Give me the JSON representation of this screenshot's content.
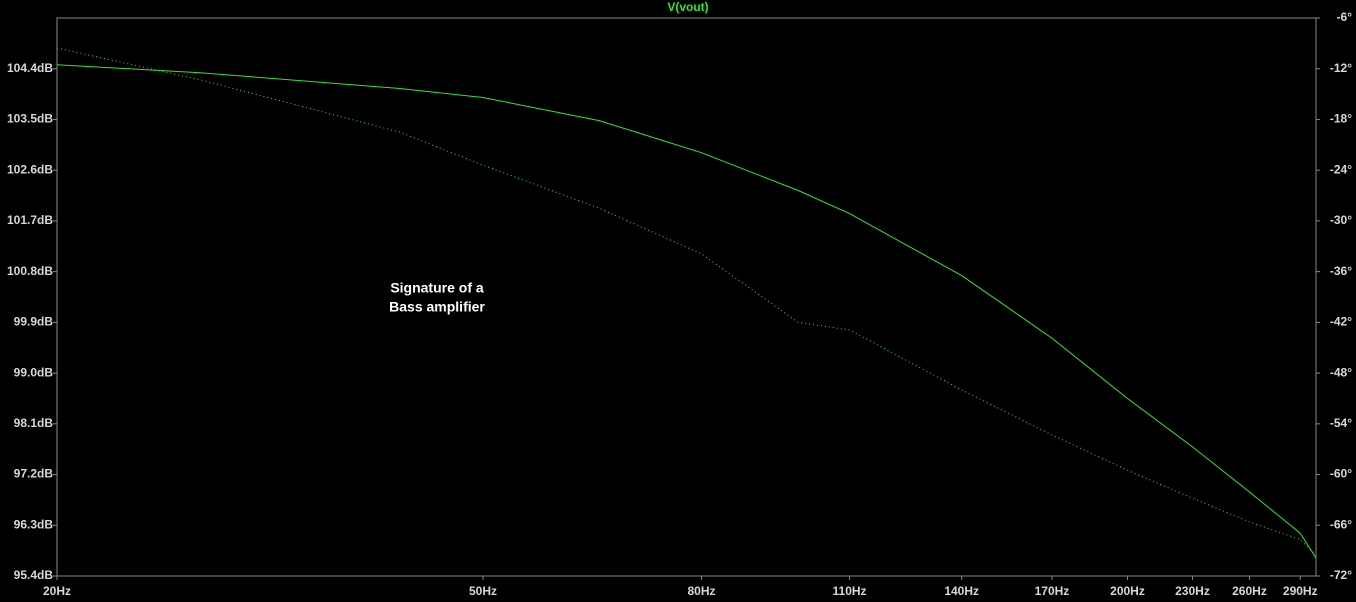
{
  "chart_data": {
    "type": "line",
    "title": "V(vout)",
    "title_color": "#2ee82e",
    "annotation": [
      "Signature of a",
      "Bass amplifier"
    ],
    "x": [
      20,
      27.2,
      41.8,
      50,
      64.2,
      80,
      98.5,
      110,
      140,
      170,
      200,
      230,
      260,
      290,
      300
    ],
    "xscale": "log",
    "xlim": [
      20,
      300
    ],
    "xticks": [
      {
        "value": 20,
        "label": "20Hz"
      },
      {
        "value": 50,
        "label": "50Hz"
      },
      {
        "value": 80,
        "label": "80Hz"
      },
      {
        "value": 110,
        "label": "110Hz"
      },
      {
        "value": 140,
        "label": "140Hz"
      },
      {
        "value": 170,
        "label": "170Hz"
      },
      {
        "value": 200,
        "label": "200Hz"
      },
      {
        "value": 230,
        "label": "230Hz"
      },
      {
        "value": 260,
        "label": "260Hz"
      },
      {
        "value": 290,
        "label": "290Hz"
      }
    ],
    "ylim": [
      95.4,
      105.3
    ],
    "yticks": [
      {
        "value": 95.4,
        "label": "95.4dB"
      },
      {
        "value": 96.3,
        "label": "96.3dB"
      },
      {
        "value": 97.2,
        "label": "97.2dB"
      },
      {
        "value": 98.1,
        "label": "98.1dB"
      },
      {
        "value": 99.0,
        "label": "99.0dB"
      },
      {
        "value": 99.9,
        "label": "99.9dB"
      },
      {
        "value": 100.8,
        "label": "100.8dB"
      },
      {
        "value": 101.7,
        "label": "101.7dB"
      },
      {
        "value": 102.6,
        "label": "102.6dB"
      },
      {
        "value": 103.5,
        "label": "103.5dB"
      },
      {
        "value": 104.4,
        "label": "104.4dB"
      }
    ],
    "y2lim": [
      -72,
      -6
    ],
    "y2ticks": [
      {
        "value": -72,
        "label": "-72°"
      },
      {
        "value": -66,
        "label": "-66°"
      },
      {
        "value": -60,
        "label": "-60°"
      },
      {
        "value": -54,
        "label": "-54°"
      },
      {
        "value": -48,
        "label": "-48°"
      },
      {
        "value": -42,
        "label": "-42°"
      },
      {
        "value": -36,
        "label": "-36°"
      },
      {
        "value": -30,
        "label": "-30°"
      },
      {
        "value": -24,
        "label": "-24°"
      },
      {
        "value": -18,
        "label": "-18°"
      },
      {
        "value": -12,
        "label": "-12°"
      },
      {
        "value": -6,
        "label": "-6°"
      }
    ],
    "series": [
      {
        "color": "#2ee82e",
        "style": "solid",
        "values": [
          104.47,
          104.33,
          104.05,
          103.89,
          103.48,
          102.91,
          102.24,
          101.83,
          100.73,
          99.62,
          98.55,
          97.69,
          96.89,
          96.16,
          95.72
        ]
      },
      {
        "color": "#2ee82e",
        "style": "dotted",
        "axis": "y2",
        "values": [
          -9.55,
          -13.3,
          -19.5,
          -23.4,
          -28.5,
          -33.9,
          -42.0,
          -42.9,
          -50.0,
          -55.3,
          -59.5,
          -62.8,
          -65.6,
          -67.7,
          -69.5
        ]
      }
    ]
  }
}
